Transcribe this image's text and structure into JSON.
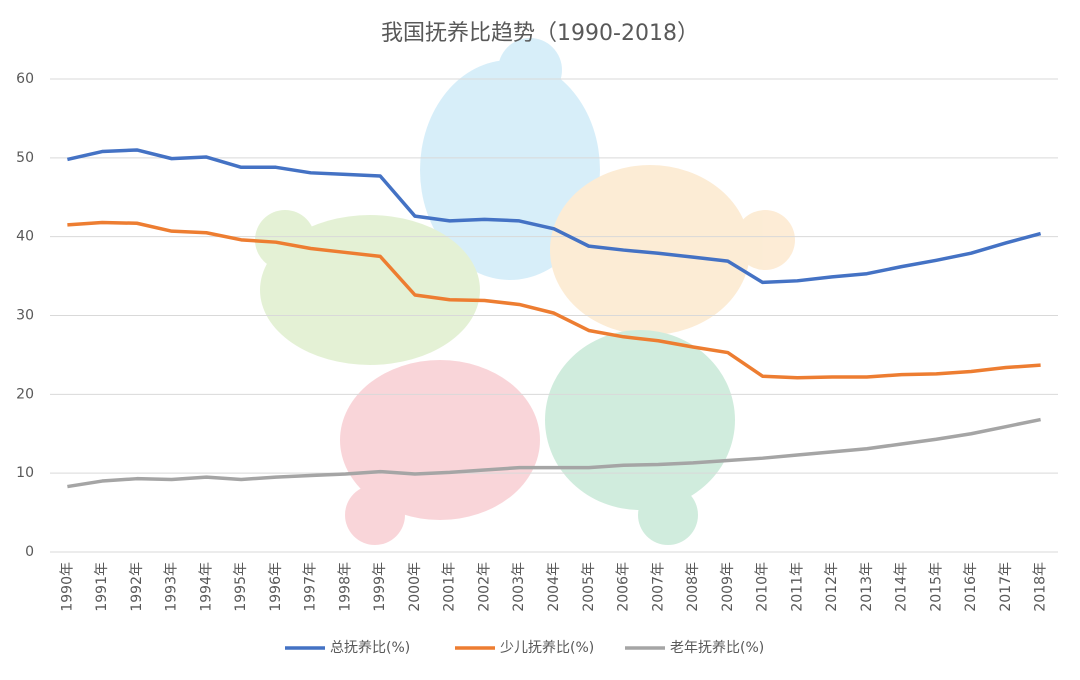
{
  "chart_data": {
    "type": "line",
    "title": "我国抚养比趋势（1990-2018）",
    "categories": [
      "1990年",
      "1991年",
      "1992年",
      "1993年",
      "1994年",
      "1995年",
      "1996年",
      "1997年",
      "1998年",
      "1999年",
      "2000年",
      "2001年",
      "2002年",
      "2003年",
      "2004年",
      "2005年",
      "2006年",
      "2007年",
      "2008年",
      "2009年",
      "2010年",
      "2011年",
      "2012年",
      "2013年",
      "2014年",
      "2015年",
      "2016年",
      "2017年",
      "2018年"
    ],
    "series": [
      {
        "name": "总抚养比(%)",
        "color": "#4472c4",
        "values": [
          49.8,
          50.8,
          51.0,
          49.9,
          50.1,
          48.8,
          48.8,
          48.1,
          47.9,
          47.7,
          42.6,
          42.0,
          42.2,
          42.0,
          41.0,
          38.8,
          38.3,
          37.9,
          37.4,
          36.9,
          34.2,
          34.4,
          34.9,
          35.3,
          36.2,
          37.0,
          37.9,
          39.2,
          40.4
        ]
      },
      {
        "name": "少儿抚养比(%)",
        "color": "#ed7d31",
        "values": [
          41.5,
          41.8,
          41.7,
          40.7,
          40.5,
          39.6,
          39.3,
          38.5,
          38.0,
          37.5,
          32.6,
          32.0,
          31.9,
          31.4,
          30.3,
          28.1,
          27.3,
          26.8,
          26.0,
          25.3,
          22.3,
          22.1,
          22.2,
          22.2,
          22.5,
          22.6,
          22.9,
          23.4,
          23.7
        ]
      },
      {
        "name": "老年抚养比(%)",
        "color": "#a5a5a5",
        "values": [
          8.3,
          9.0,
          9.3,
          9.2,
          9.5,
          9.2,
          9.5,
          9.7,
          9.9,
          10.2,
          9.9,
          10.1,
          10.4,
          10.7,
          10.7,
          10.7,
          11.0,
          11.1,
          11.3,
          11.6,
          11.9,
          12.3,
          12.7,
          13.1,
          13.7,
          14.3,
          15.0,
          15.9,
          16.8
        ]
      }
    ],
    "ylim": [
      0,
      60
    ],
    "yticks": [
      0,
      10,
      20,
      30,
      40,
      50,
      60
    ],
    "grid": true,
    "legend": "bottom"
  }
}
